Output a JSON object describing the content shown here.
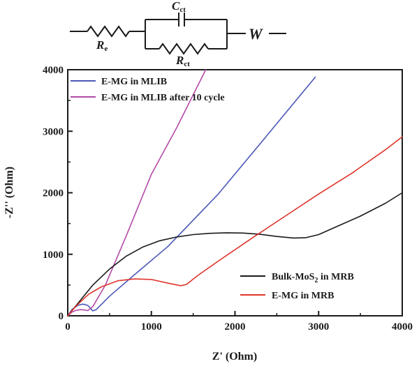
{
  "circuit": {
    "re_main": "R",
    "re_sub": "e",
    "rct_main": "R",
    "rct_sub": "ct",
    "cct_main": "C",
    "cct_sub": "ct",
    "w": "W"
  },
  "chart_data": {
    "type": "line",
    "title": "",
    "xlabel": "Z' (Ohm)",
    "ylabel": "-Z'' (Ohm)",
    "xlim": [
      0,
      4000
    ],
    "ylim": [
      0,
      4000
    ],
    "xticks": [
      "0",
      "1000",
      "2000",
      "3000",
      "4000"
    ],
    "yticks": [
      "0",
      "1000",
      "2000",
      "3000",
      "4000"
    ],
    "grid": false,
    "series": [
      {
        "name": "E-MG in MLIB",
        "color": "#4a57b8",
        "legend": "top-left",
        "x": [
          0,
          50,
          120,
          180,
          240,
          280,
          300,
          340,
          500,
          800,
          1200,
          1800,
          2400,
          2960
        ],
        "y": [
          0,
          100,
          170,
          190,
          170,
          110,
          80,
          100,
          320,
          670,
          1130,
          1980,
          2960,
          3880
        ]
      },
      {
        "name": "E-MG in MLIB after 10 cycle",
        "color": "#b34aa8",
        "legend": "top-left",
        "x": [
          0,
          50,
          100,
          150,
          200,
          240,
          300,
          450,
          700,
          1000,
          1300,
          1650
        ],
        "y": [
          0,
          60,
          90,
          100,
          95,
          85,
          150,
          500,
          1300,
          2300,
          3050,
          4000
        ]
      },
      {
        "name": "Bulk-MoS",
        "name_sub": "2",
        "name_suffix": " in MRB",
        "color": "#1a1a1a",
        "legend": "bottom-right",
        "x": [
          0,
          150,
          300,
          500,
          700,
          900,
          1100,
          1300,
          1500,
          1700,
          1900,
          2100,
          2300,
          2500,
          2700,
          2850,
          3000,
          3200,
          3500,
          3800,
          4000
        ],
        "y": [
          0,
          250,
          500,
          760,
          970,
          1120,
          1220,
          1280,
          1320,
          1340,
          1350,
          1345,
          1325,
          1290,
          1265,
          1270,
          1320,
          1440,
          1620,
          1830,
          2000
        ]
      },
      {
        "name": "E-MG in MRB",
        "color": "#e0342a",
        "legend": "bottom-right",
        "x": [
          0,
          100,
          250,
          400,
          600,
          800,
          1000,
          1200,
          1350,
          1420,
          1550,
          1800,
          2200,
          2600,
          3000,
          3400,
          3800,
          4000
        ],
        "y": [
          0,
          160,
          350,
          470,
          570,
          600,
          590,
          530,
          490,
          510,
          650,
          890,
          1260,
          1620,
          1980,
          2320,
          2700,
          2910
        ]
      }
    ]
  }
}
